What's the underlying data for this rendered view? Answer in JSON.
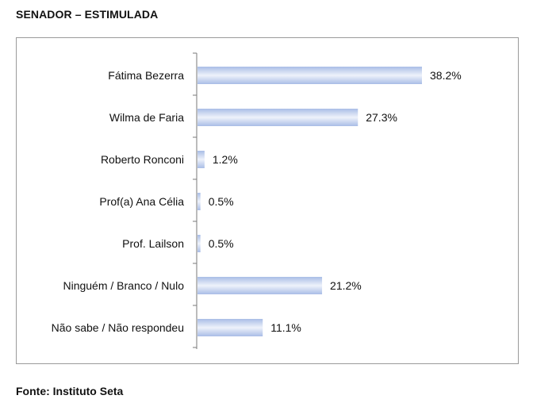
{
  "header": {
    "title": "SENADOR – ESTIMULADA"
  },
  "footer": {
    "source": "Fonte: Instituto Seta"
  },
  "colors": {
    "bar_light": "#eef2fb",
    "bar_dark": "#a9bde6",
    "axis": "#7a7a7a"
  },
  "chart_data": {
    "type": "bar",
    "orientation": "horizontal",
    "categories": [
      "Fátima Bezerra",
      "Wilma de Faria",
      "Roberto Ronconi",
      "Prof(a) Ana Célia",
      "Prof. Lailson",
      "Ninguém / Branco / Nulo",
      "Não sabe / Não respondeu"
    ],
    "values": [
      38.2,
      27.3,
      1.2,
      0.5,
      0.5,
      21.2,
      11.1
    ],
    "value_labels": [
      "38.2%",
      "27.3%",
      "1.2%",
      "0.5%",
      "0.5%",
      "21.2%",
      "11.1%"
    ],
    "title": "SENADOR – ESTIMULADA",
    "xlim": [
      0,
      40
    ],
    "grid": false,
    "legend": "none"
  }
}
